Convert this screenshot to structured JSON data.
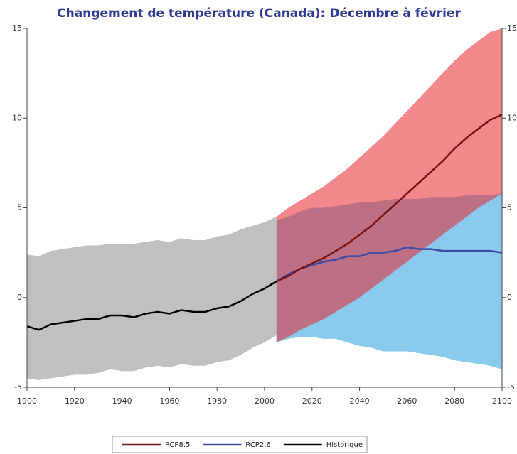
{
  "chart_data": {
    "type": "line",
    "title": "Changement de température (Canada): Décembre à février",
    "x": [
      1900,
      1905,
      1910,
      1915,
      1920,
      1925,
      1930,
      1935,
      1940,
      1945,
      1950,
      1955,
      1960,
      1965,
      1970,
      1975,
      1980,
      1985,
      1990,
      1995,
      2000,
      2005,
      2010,
      2015,
      2020,
      2025,
      2030,
      2035,
      2040,
      2045,
      2050,
      2055,
      2060,
      2065,
      2070,
      2075,
      2080,
      2085,
      2090,
      2095,
      2100
    ],
    "xlim": [
      1900,
      2100
    ],
    "xticks": [
      1900,
      1920,
      1940,
      1960,
      1980,
      2000,
      2020,
      2040,
      2060,
      2080,
      2100
    ],
    "ylim": [
      -5,
      15
    ],
    "yticks": [
      -5,
      0,
      5,
      10,
      15
    ],
    "series": [
      {
        "name": "RCP2.6",
        "color": "#3b4aa8",
        "band_color": "#63b8e6",
        "values": [
          null,
          null,
          null,
          null,
          null,
          null,
          null,
          null,
          null,
          null,
          null,
          null,
          null,
          null,
          null,
          null,
          null,
          null,
          null,
          null,
          null,
          0.9,
          1.3,
          1.6,
          1.8,
          2.0,
          2.1,
          2.3,
          2.3,
          2.5,
          2.5,
          2.6,
          2.8,
          2.7,
          2.7,
          2.6,
          2.6,
          2.6,
          2.6,
          2.6,
          2.5
        ],
        "low": [
          null,
          null,
          null,
          null,
          null,
          null,
          null,
          null,
          null,
          null,
          null,
          null,
          null,
          null,
          null,
          null,
          null,
          null,
          null,
          null,
          null,
          -2.5,
          -2.3,
          -2.2,
          -2.2,
          -2.3,
          -2.3,
          -2.5,
          -2.7,
          -2.8,
          -3.0,
          -3.0,
          -3.0,
          -3.1,
          -3.2,
          -3.3,
          -3.5,
          -3.6,
          -3.7,
          -3.8,
          -4.0
        ],
        "high": [
          null,
          null,
          null,
          null,
          null,
          null,
          null,
          null,
          null,
          null,
          null,
          null,
          null,
          null,
          null,
          null,
          null,
          null,
          null,
          null,
          null,
          4.3,
          4.5,
          4.8,
          5.0,
          5.0,
          5.1,
          5.2,
          5.3,
          5.3,
          5.4,
          5.5,
          5.5,
          5.5,
          5.6,
          5.6,
          5.6,
          5.7,
          5.7,
          5.7,
          5.8
        ]
      },
      {
        "name": "RCP8.5",
        "color": "#7a1010",
        "band_color": "#e8262d",
        "values": [
          null,
          null,
          null,
          null,
          null,
          null,
          null,
          null,
          null,
          null,
          null,
          null,
          null,
          null,
          null,
          null,
          null,
          null,
          null,
          null,
          null,
          0.9,
          1.2,
          1.6,
          1.9,
          2.2,
          2.6,
          3.0,
          3.5,
          4.0,
          4.6,
          5.2,
          5.8,
          6.4,
          7.0,
          7.6,
          8.3,
          8.9,
          9.4,
          9.9,
          10.2
        ],
        "low": [
          null,
          null,
          null,
          null,
          null,
          null,
          null,
          null,
          null,
          null,
          null,
          null,
          null,
          null,
          null,
          null,
          null,
          null,
          null,
          null,
          null,
          -2.5,
          -2.2,
          -1.8,
          -1.5,
          -1.2,
          -0.8,
          -0.4,
          0.0,
          0.5,
          1.0,
          1.5,
          2.0,
          2.5,
          3.0,
          3.5,
          4.0,
          4.5,
          5.0,
          5.4,
          5.8
        ],
        "high": [
          null,
          null,
          null,
          null,
          null,
          null,
          null,
          null,
          null,
          null,
          null,
          null,
          null,
          null,
          null,
          null,
          null,
          null,
          null,
          null,
          null,
          4.5,
          5.0,
          5.4,
          5.8,
          6.2,
          6.7,
          7.2,
          7.8,
          8.4,
          9.0,
          9.7,
          10.4,
          11.1,
          11.8,
          12.5,
          13.2,
          13.8,
          14.3,
          14.8,
          15.0
        ]
      },
      {
        "name": "Historique",
        "color": "#000000",
        "band_color": "#ababab",
        "values": [
          -1.6,
          -1.8,
          -1.5,
          -1.4,
          -1.3,
          -1.2,
          -1.2,
          -1.0,
          -1.0,
          -1.1,
          -0.9,
          -0.8,
          -0.9,
          -0.7,
          -0.8,
          -0.8,
          -0.6,
          -0.5,
          -0.2,
          0.2,
          0.5,
          0.9,
          null,
          null,
          null,
          null,
          null,
          null,
          null,
          null,
          null,
          null,
          null,
          null,
          null,
          null,
          null,
          null,
          null,
          null,
          null
        ],
        "low": [
          -4.5,
          -4.6,
          -4.5,
          -4.4,
          -4.3,
          -4.3,
          -4.2,
          -4.0,
          -4.1,
          -4.1,
          -3.9,
          -3.8,
          -3.9,
          -3.7,
          -3.8,
          -3.8,
          -3.6,
          -3.5,
          -3.2,
          -2.8,
          -2.5,
          -2.1,
          null,
          null,
          null,
          null,
          null,
          null,
          null,
          null,
          null,
          null,
          null,
          null,
          null,
          null,
          null,
          null,
          null,
          null,
          null
        ],
        "high": [
          2.4,
          2.3,
          2.6,
          2.7,
          2.8,
          2.9,
          2.9,
          3.0,
          3.0,
          3.0,
          3.1,
          3.2,
          3.1,
          3.3,
          3.2,
          3.2,
          3.4,
          3.5,
          3.8,
          4.0,
          4.2,
          4.5,
          null,
          null,
          null,
          null,
          null,
          null,
          null,
          null,
          null,
          null,
          null,
          null,
          null,
          null,
          null,
          null,
          null,
          null,
          null
        ]
      }
    ],
    "legend_order": [
      "RCP8.5",
      "RCP2.6",
      "Historique"
    ]
  }
}
